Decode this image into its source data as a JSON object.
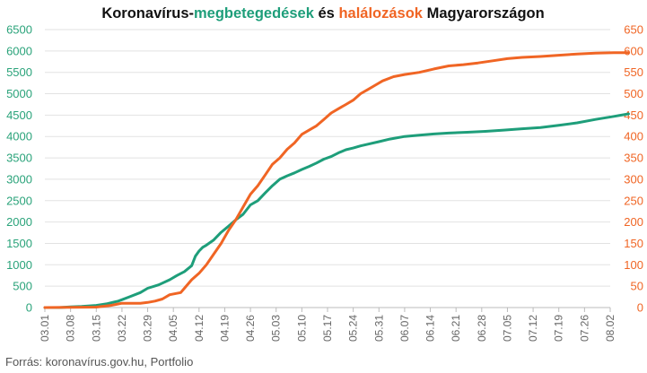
{
  "chart_data": {
    "type": "line",
    "title_parts": [
      {
        "text": "Koronavírus-",
        "role": "plain"
      },
      {
        "text": "megbetegedések",
        "role": "cases"
      },
      {
        "text": " és ",
        "role": "plain"
      },
      {
        "text": "halálozások",
        "role": "deaths"
      },
      {
        "text": " Magyarországon",
        "role": "plain"
      }
    ],
    "colors": {
      "cases": "#1e9e7a",
      "deaths": "#f06524",
      "plain": "#111111",
      "grid": "#e2e2e2",
      "axis": "#bbbbbb"
    },
    "y_left": {
      "min": 0,
      "max": 6500,
      "ticks": [
        "0",
        "500",
        "1000",
        "1500",
        "2000",
        "2500",
        "3000",
        "3500",
        "4000",
        "4500",
        "5000",
        "5500",
        "6000",
        "6500"
      ]
    },
    "y_right": {
      "min": 0,
      "max": 650,
      "ticks": [
        "0",
        "50",
        "100",
        "150",
        "200",
        "250",
        "300",
        "350",
        "400",
        "450",
        "500",
        "550",
        "600",
        "650"
      ]
    },
    "x_ticks": [
      "03.01",
      "03.08",
      "03.15",
      "03.22",
      "03.29",
      "04.05",
      "04.12",
      "04.19",
      "04.26",
      "05.03",
      "05.10",
      "05.17",
      "05.24",
      "05.31",
      "06.07",
      "06.14",
      "06.21",
      "06.28",
      "07.05",
      "07.12",
      "07.19",
      "07.26",
      "08.02"
    ],
    "series": [
      {
        "role": "cases",
        "axis": "left",
        "points": [
          [
            0,
            0
          ],
          [
            4,
            0
          ],
          [
            7,
            15
          ],
          [
            10,
            25
          ],
          [
            14,
            50
          ],
          [
            17,
            90
          ],
          [
            20,
            150
          ],
          [
            23,
            250
          ],
          [
            26,
            350
          ],
          [
            28,
            450
          ],
          [
            31,
            530
          ],
          [
            34,
            650
          ],
          [
            36,
            750
          ],
          [
            38,
            840
          ],
          [
            40,
            980
          ],
          [
            41,
            1200
          ],
          [
            42,
            1320
          ],
          [
            43,
            1410
          ],
          [
            44,
            1460
          ],
          [
            46,
            1580
          ],
          [
            48,
            1760
          ],
          [
            50,
            1900
          ],
          [
            52,
            2050
          ],
          [
            54,
            2180
          ],
          [
            56,
            2400
          ],
          [
            58,
            2500
          ],
          [
            60,
            2680
          ],
          [
            62,
            2850
          ],
          [
            64,
            3000
          ],
          [
            66,
            3080
          ],
          [
            68,
            3150
          ],
          [
            70,
            3230
          ],
          [
            72,
            3300
          ],
          [
            74,
            3380
          ],
          [
            76,
            3470
          ],
          [
            78,
            3530
          ],
          [
            80,
            3620
          ],
          [
            82,
            3690
          ],
          [
            84,
            3730
          ],
          [
            86,
            3780
          ],
          [
            88,
            3820
          ],
          [
            91,
            3880
          ],
          [
            94,
            3940
          ],
          [
            98,
            4000
          ],
          [
            102,
            4030
          ],
          [
            106,
            4060
          ],
          [
            110,
            4080
          ],
          [
            115,
            4100
          ],
          [
            120,
            4120
          ],
          [
            125,
            4150
          ],
          [
            130,
            4180
          ],
          [
            135,
            4210
          ],
          [
            140,
            4260
          ],
          [
            145,
            4320
          ],
          [
            150,
            4400
          ],
          [
            155,
            4470
          ],
          [
            159,
            4530
          ]
        ]
      },
      {
        "role": "deaths",
        "axis": "right",
        "points": [
          [
            0,
            0
          ],
          [
            14,
            1
          ],
          [
            18,
            5
          ],
          [
            21,
            10
          ],
          [
            24,
            10
          ],
          [
            26,
            10
          ],
          [
            28,
            12
          ],
          [
            30,
            15
          ],
          [
            32,
            20
          ],
          [
            34,
            30
          ],
          [
            37,
            35
          ],
          [
            38,
            45
          ],
          [
            40,
            65
          ],
          [
            42,
            80
          ],
          [
            44,
            100
          ],
          [
            46,
            125
          ],
          [
            48,
            150
          ],
          [
            50,
            180
          ],
          [
            52,
            205
          ],
          [
            54,
            235
          ],
          [
            56,
            265
          ],
          [
            58,
            285
          ],
          [
            60,
            310
          ],
          [
            62,
            335
          ],
          [
            64,
            350
          ],
          [
            66,
            370
          ],
          [
            68,
            385
          ],
          [
            70,
            405
          ],
          [
            72,
            415
          ],
          [
            74,
            425
          ],
          [
            76,
            440
          ],
          [
            78,
            455
          ],
          [
            80,
            465
          ],
          [
            82,
            475
          ],
          [
            84,
            485
          ],
          [
            86,
            500
          ],
          [
            88,
            510
          ],
          [
            90,
            520
          ],
          [
            92,
            530
          ],
          [
            95,
            540
          ],
          [
            98,
            545
          ],
          [
            102,
            550
          ],
          [
            106,
            558
          ],
          [
            110,
            565
          ],
          [
            114,
            568
          ],
          [
            118,
            572
          ],
          [
            122,
            577
          ],
          [
            126,
            582
          ],
          [
            130,
            585
          ],
          [
            135,
            587
          ],
          [
            140,
            590
          ],
          [
            145,
            593
          ],
          [
            150,
            595
          ],
          [
            155,
            596
          ],
          [
            159,
            596
          ]
        ]
      }
    ],
    "xlabel": "",
    "ylabel": "",
    "grid": true,
    "legend": "none"
  },
  "source": "Forrás: koronavírus.gov.hu, Portfolio"
}
